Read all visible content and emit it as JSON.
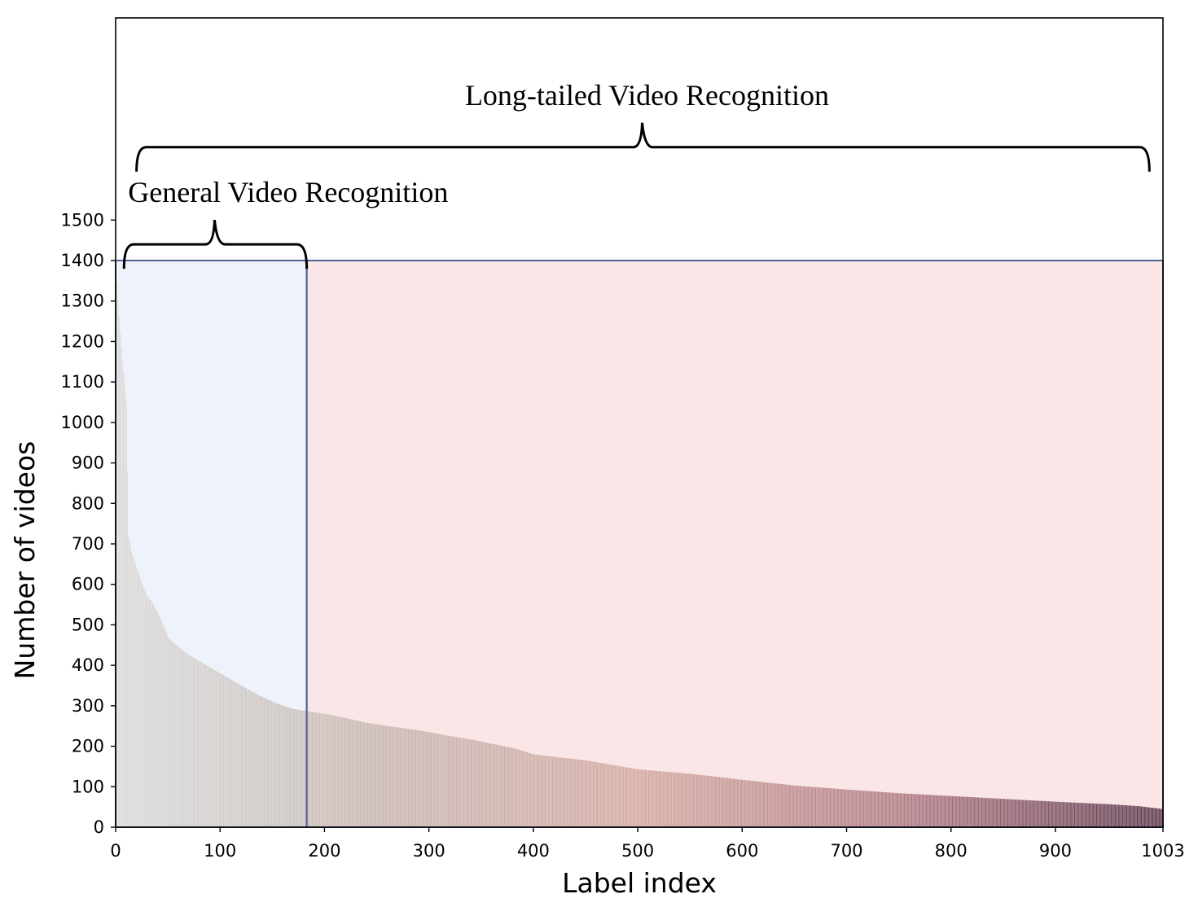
{
  "chart_data": {
    "type": "bar",
    "title": "",
    "xlabel": "Label index",
    "ylabel": "Number of videos",
    "xlim": [
      0,
      1003
    ],
    "ylim": [
      0,
      1500
    ],
    "x_ticks": [
      "0",
      "100",
      "200",
      "300",
      "400",
      "500",
      "600",
      "700",
      "800",
      "900",
      "1003"
    ],
    "y_ticks": [
      "0",
      "100",
      "200",
      "300",
      "400",
      "500",
      "600",
      "700",
      "800",
      "900",
      "1000",
      "1100",
      "1200",
      "1300",
      "1400",
      "1500"
    ],
    "grid": false,
    "n_bars": 1003,
    "sorted": "descending",
    "profile": {
      "x": [
        0,
        2,
        4,
        6,
        8,
        10,
        12,
        15,
        20,
        25,
        30,
        35,
        40,
        45,
        50,
        55,
        60,
        70,
        80,
        90,
        100,
        110,
        120,
        130,
        140,
        150,
        160,
        170,
        180,
        190,
        200,
        220,
        240,
        260,
        280,
        300,
        320,
        340,
        360,
        380,
        400,
        450,
        500,
        550,
        600,
        650,
        700,
        750,
        800,
        850,
        900,
        950,
        980,
        1002
      ],
      "values": [
        1390,
        1300,
        1220,
        1150,
        1100,
        1040,
        720,
        680,
        640,
        600,
        570,
        555,
        530,
        500,
        470,
        455,
        445,
        425,
        410,
        395,
        380,
        365,
        350,
        335,
        322,
        310,
        300,
        292,
        288,
        284,
        280,
        270,
        258,
        250,
        243,
        235,
        225,
        217,
        206,
        196,
        180,
        165,
        143,
        132,
        117,
        103,
        93,
        84,
        77,
        70,
        63,
        57,
        52,
        45
      ]
    },
    "regions": [
      {
        "name": "head",
        "x_range": [
          0,
          183
        ],
        "color": "#eef2fa"
      },
      {
        "name": "tail",
        "x_range": [
          183,
          1003
        ],
        "color": "#fae6e6"
      }
    ],
    "bar_gradient": [
      "#dcdcd8",
      "#c6b8b4",
      "#d2aaa2",
      "#b07c86",
      "#5a3a4e"
    ],
    "annotations": [
      {
        "text": "General Video Recognition",
        "x_range": [
          8,
          183
        ],
        "level": 1440
      },
      {
        "text": "Long-tailed Video Recognition",
        "x_range": [
          20,
          990
        ],
        "level": 1680
      }
    ]
  }
}
